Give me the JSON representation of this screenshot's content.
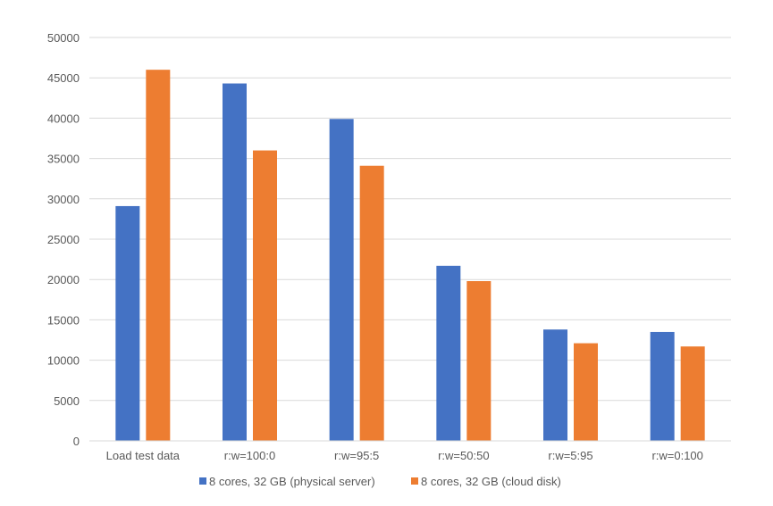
{
  "chart_data": {
    "type": "bar",
    "categories": [
      "Load test data",
      "r:w=100:0",
      "r:w=95:5",
      "r:w=50:50",
      "r:w=5:95",
      "r:w=0:100"
    ],
    "series": [
      {
        "name": "8 cores, 32 GB (physical server)",
        "color": "#4472C4",
        "values": [
          29100,
          44300,
          39900,
          21700,
          13800,
          13500
        ]
      },
      {
        "name": "8 cores, 32 GB (cloud disk)",
        "color": "#ED7D31",
        "values": [
          46000,
          36000,
          34100,
          19800,
          12100,
          11700
        ]
      }
    ],
    "title": "",
    "xlabel": "",
    "ylabel": "",
    "ylim": [
      0,
      50000
    ],
    "yticks": [
      0,
      5000,
      10000,
      15000,
      20000,
      25000,
      30000,
      35000,
      40000,
      45000,
      50000
    ],
    "grid": true,
    "legend_position": "bottom"
  }
}
